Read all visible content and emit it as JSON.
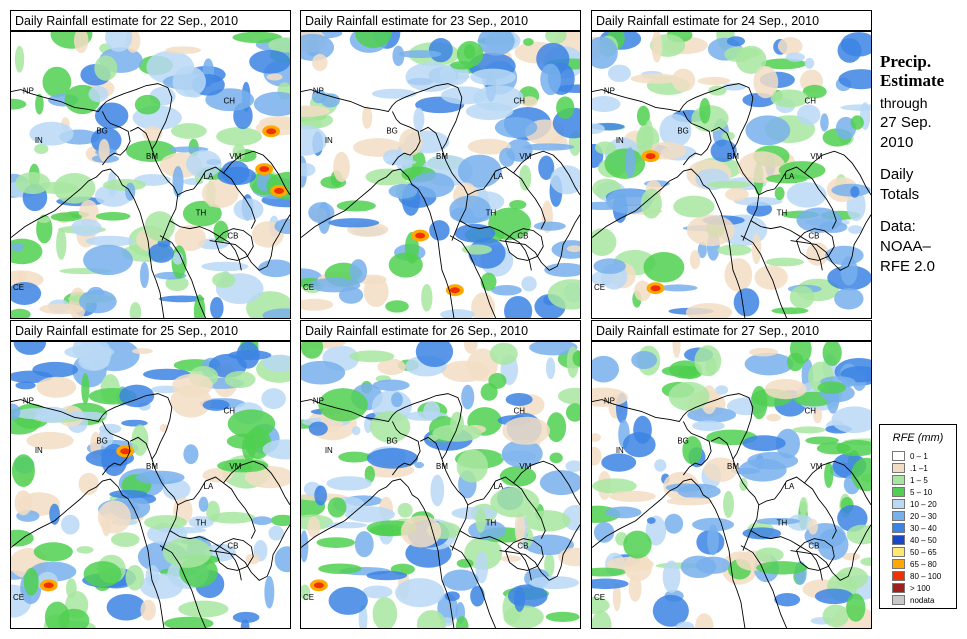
{
  "panels": [
    {
      "title": "Daily Rainfall estimate for  22 Sep., 2010"
    },
    {
      "title": "Daily Rainfall estimate for  23 Sep., 2010"
    },
    {
      "title": "Daily Rainfall estimate for  24 Sep., 2010"
    },
    {
      "title": "Daily Rainfall estimate for  25 Sep., 2010"
    },
    {
      "title": "Daily Rainfall estimate for  26 Sep., 2010"
    },
    {
      "title": "Daily Rainfall estimate for  27 Sep., 2010"
    }
  ],
  "country_labels": {
    "np": "NP",
    "ch": "CH",
    "in": "IN",
    "bg": "BG",
    "bm": "BM",
    "vm": "VM",
    "la": "LA",
    "th": "TH",
    "cb": "CB",
    "ce": "CE"
  },
  "side": {
    "heading1": "Precip.",
    "heading2": "Estimate",
    "through_label": "through",
    "date_line1": "27 Sep.",
    "date_line2": "2010",
    "daily1": "Daily",
    "daily2": "Totals",
    "data1": "Data:",
    "data2": "NOAA–",
    "data3": "RFE 2.0"
  },
  "legend": {
    "title": "RFE (mm)",
    "items": [
      {
        "label": "0 – 1",
        "color": "#ffffff"
      },
      {
        "label": ".1 –1",
        "color": "#f2ddc4"
      },
      {
        "label": "1 – 5",
        "color": "#a8e6a0"
      },
      {
        "label": "5 – 10",
        "color": "#50d050"
      },
      {
        "label": "10 – 20",
        "color": "#b8d8f4"
      },
      {
        "label": "20 – 30",
        "color": "#78b0ec"
      },
      {
        "label": "30 – 40",
        "color": "#3c84e4"
      },
      {
        "label": "40 – 50",
        "color": "#1848c8"
      },
      {
        "label": "50 – 65",
        "color": "#ffe870"
      },
      {
        "label": "65 – 80",
        "color": "#ffa800"
      },
      {
        "label": "80 – 100",
        "color": "#f03000"
      },
      {
        "label": "> 100",
        "color": "#a02020"
      },
      {
        "label": "nodata",
        "color": "#c8c8c8"
      }
    ]
  }
}
